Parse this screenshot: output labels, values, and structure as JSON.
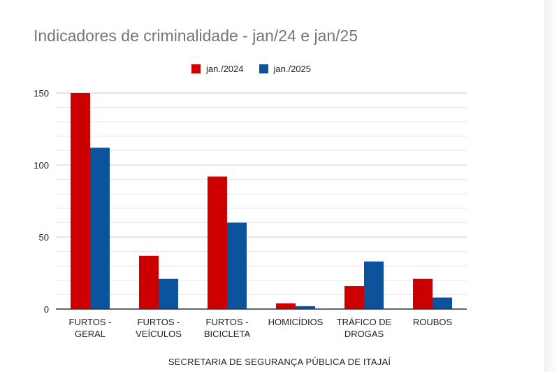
{
  "chart_data": {
    "type": "bar",
    "title": "Indicadores de criminalidade - jan/24 e jan/25",
    "xlabel": "SECRETARIA DE SEGURANÇA PÚBLICA DE ITAJAÍ",
    "ylabel": "",
    "categories": [
      [
        "FURTOS -",
        "GERAL"
      ],
      [
        "FURTOS -",
        "VEÍCULOS"
      ],
      [
        "FURTOS -",
        "BICICLETA"
      ],
      [
        "HOMICÍDIOS"
      ],
      [
        "TRÁFICO DE",
        "DROGAS"
      ],
      [
        "ROUBOS"
      ]
    ],
    "series": [
      {
        "name": "jan./2024",
        "color": "#cc0000",
        "values": [
          150,
          37,
          92,
          4,
          16,
          21
        ]
      },
      {
        "name": "jan./2025",
        "color": "#0b539c",
        "values": [
          112,
          21,
          60,
          2,
          33,
          8
        ]
      }
    ],
    "ylim": [
      0,
      150
    ],
    "yticks": [
      0,
      50,
      100,
      150
    ],
    "grid": true,
    "legend_position": "top-center"
  }
}
